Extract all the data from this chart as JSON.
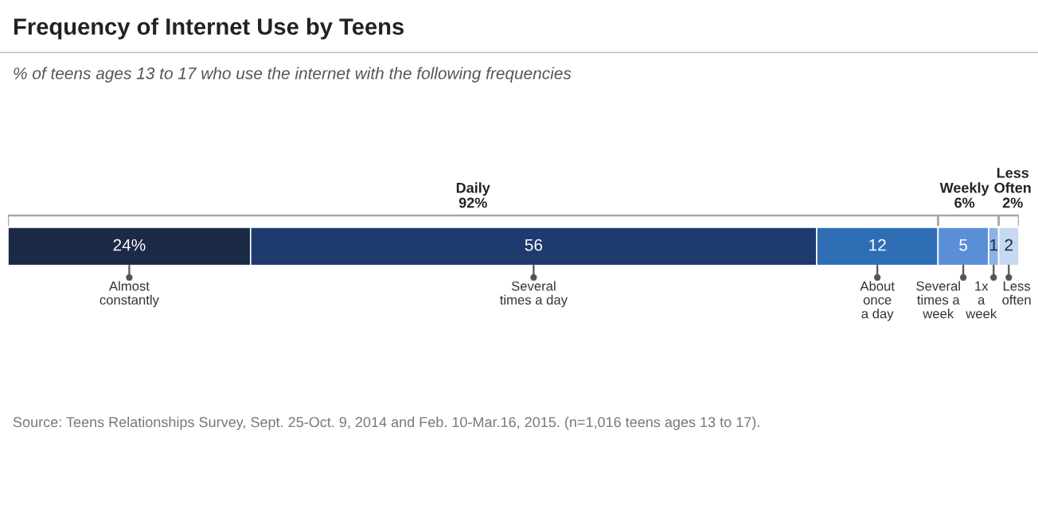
{
  "chart_data": {
    "type": "bar",
    "orientation": "horizontal",
    "stacked": true,
    "title": "Frequency of Internet Use by Teens",
    "subtitle": "% of teens ages 13 to 17 who use the internet with the following frequencies",
    "categories": [
      null
    ],
    "xlim": [
      0,
      100
    ],
    "tick_labels": false,
    "legend": false,
    "series": [
      {
        "name": "Almost\nconstantly",
        "color": "#1b2a47",
        "values": [
          24
        ],
        "value_labels": [
          "24%"
        ]
      },
      {
        "name": "Several\ntimes a day",
        "color": "#1f3a6e",
        "values": [
          56
        ],
        "value_labels": [
          "56"
        ]
      },
      {
        "name": "About\nonce\na day",
        "color": "#2f6db5",
        "values": [
          12
        ],
        "value_labels": [
          "12"
        ]
      },
      {
        "name": "Several\ntimes a\nweek",
        "color": "#5a8fd8",
        "values": [
          5
        ],
        "value_labels": [
          "5"
        ]
      },
      {
        "name": "1x\na\nweek",
        "color": "#8db2e6",
        "values": [
          1
        ],
        "value_labels": [
          "1"
        ]
      },
      {
        "name": "Less\noften",
        "color": "#c6d8f2",
        "values": [
          2
        ],
        "value_labels": [
          "2"
        ]
      }
    ],
    "annotations": [
      "Daily\n92%",
      "Weekly\n6%",
      "Less\nOften\n2%",
      "Source: Teens Relationships Survey, Sept. 25-Oct. 9, 2014 and Feb. 10-Mar.16, 2015. (n=1,016 teens ages 13 to 17)."
    ]
  }
}
